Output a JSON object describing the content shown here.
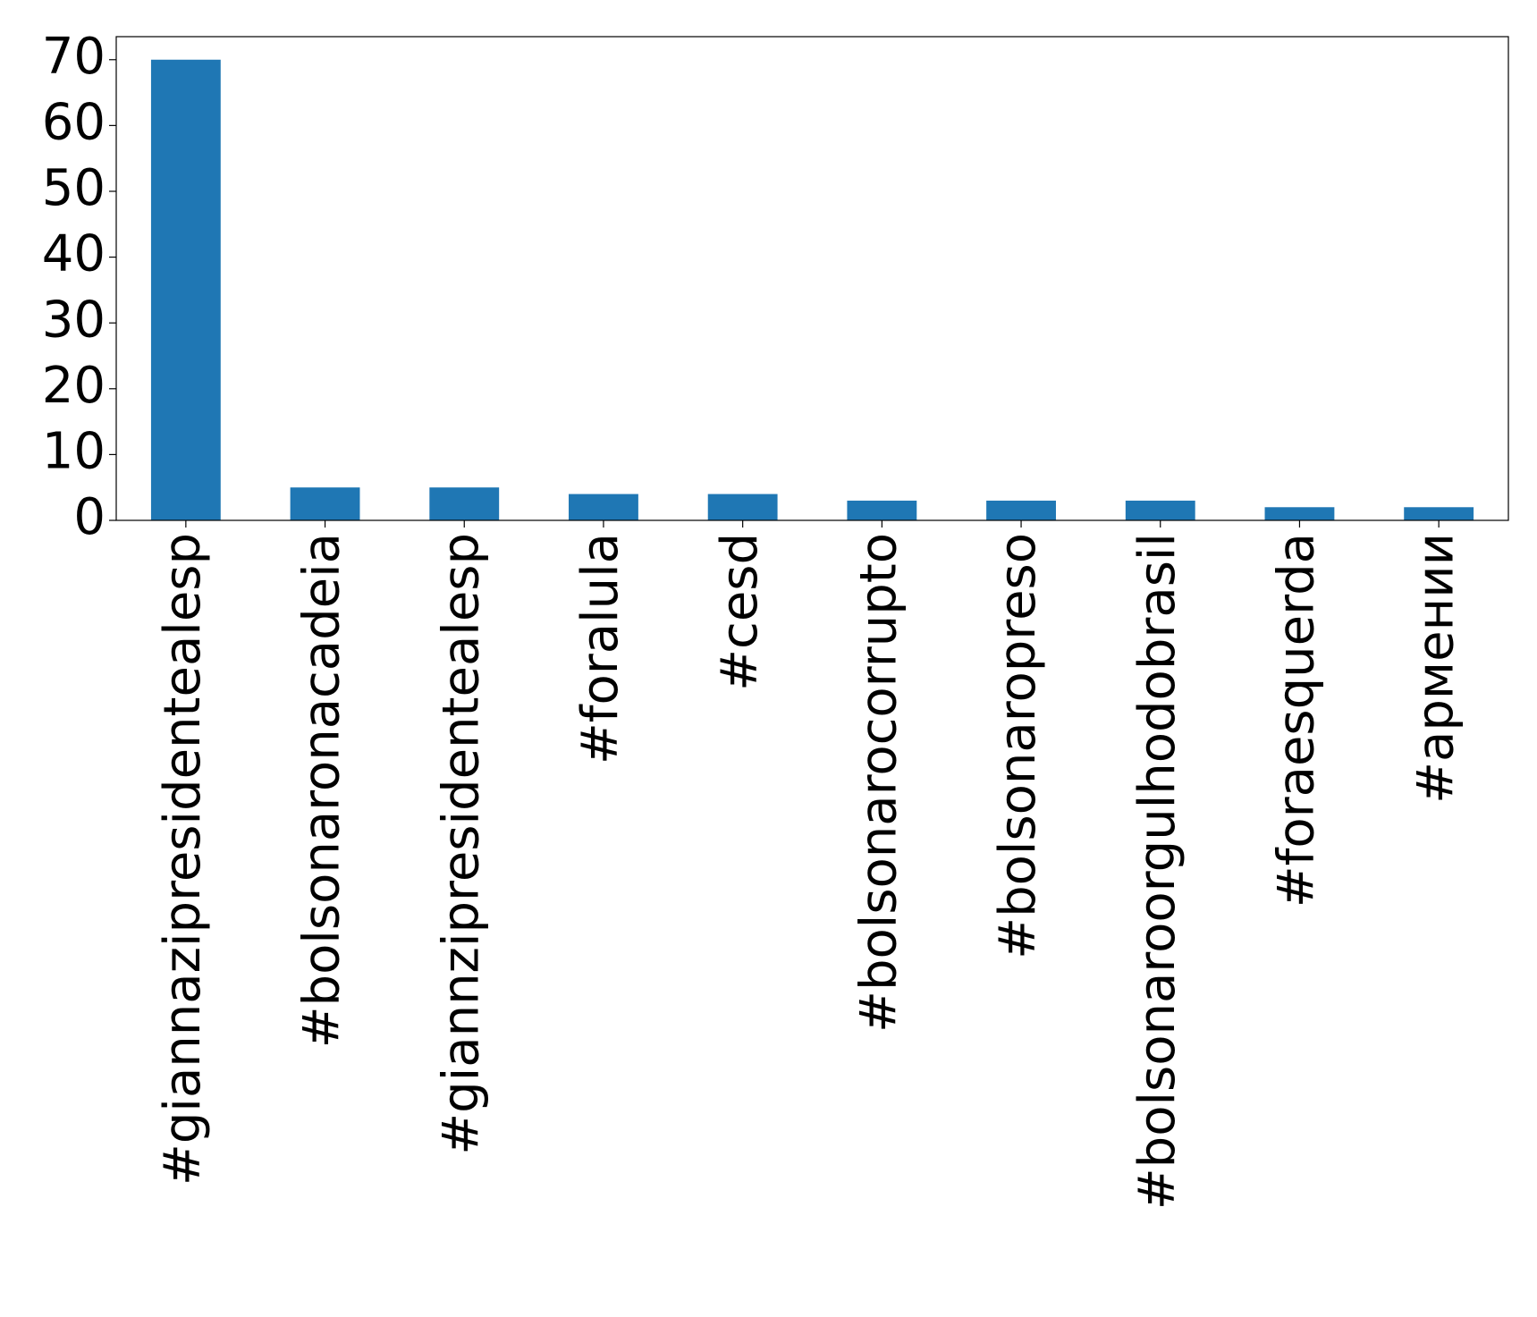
{
  "chart_data": {
    "type": "bar",
    "categories": [
      "#giannazipresidentealesp",
      "#bolsonaronacadeia",
      "#giannzipresidentealesp",
      "#foralula",
      "#cesd",
      "#bolsonarocorrupto",
      "#bolsonaropreso",
      "#bolsonaroorgulhodobrasil",
      "#foraesquerda",
      "#армении"
    ],
    "values": [
      70,
      5,
      5,
      4,
      4,
      3,
      3,
      3,
      2,
      2
    ],
    "color": "#1f77b4",
    "ylim": [
      0,
      73.5
    ],
    "yticks": [
      0,
      10,
      20,
      30,
      40,
      50,
      60,
      70
    ],
    "grid": false
  }
}
